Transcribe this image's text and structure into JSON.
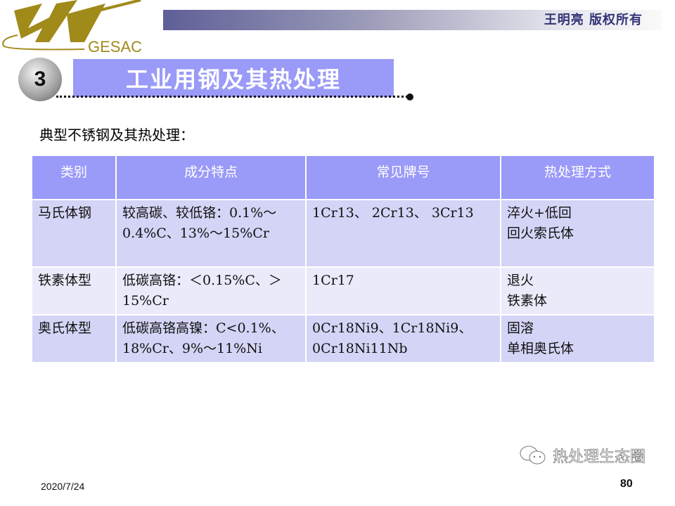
{
  "header": {
    "logo_text": "GESAC",
    "copyright": "王明亮 版权所有"
  },
  "section": {
    "number": "3",
    "title": "工业用钢及其热处理"
  },
  "subtitle": "典型不锈钢及其热处理：",
  "table": {
    "headers": [
      "类别",
      "成分特点",
      "常见牌号",
      "热处理方式"
    ],
    "rows": [
      {
        "category": "马氏体钢",
        "composition": "较高碳、较低铬：0.1%～0.4%C、13%～15%Cr",
        "grades": "1Cr13、 2Cr13、 3Cr13",
        "treatment": [
          "淬火+低回",
          "回火索氏体"
        ]
      },
      {
        "category": "铁素体型",
        "composition": "低碳高铬：＜0.15%C、＞15%Cr",
        "grades": "1Cr17",
        "treatment": [
          "退火",
          "铁素体"
        ]
      },
      {
        "category": "奥氏体型",
        "composition": "低碳高铬高镍：C<0.1%、18%Cr、9%～11%Ni",
        "grades": "0Cr18Ni9、1Cr18Ni9、0Cr18Ni11Nb",
        "treatment": [
          "固溶",
          "单相奥氏体"
        ]
      }
    ]
  },
  "footer": {
    "date": "2020/7/24",
    "page": "80",
    "watermark": "热处理生态圈"
  },
  "colors": {
    "accent": "#9a9af8",
    "row_dark": "#d4d4f6",
    "row_light": "#eaeafb",
    "logo": "#a08a1a"
  }
}
